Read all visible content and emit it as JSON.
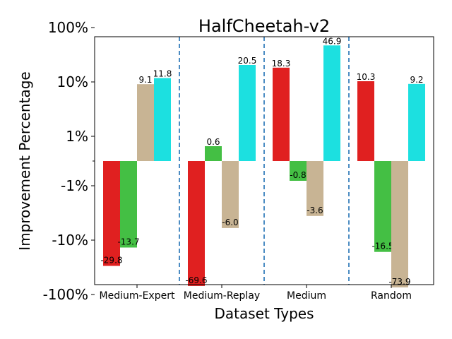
{
  "chart_data": {
    "type": "bar",
    "title": "HalfCheetah-v2",
    "xlabel": "Dataset Types",
    "ylabel": "Improvement Percentage",
    "yscale": "symlog",
    "ylim": [
      -100,
      100
    ],
    "categories": [
      "Medium-Expert",
      "Medium-Replay",
      "Medium",
      "Random"
    ],
    "yticks": [
      {
        "value": 100,
        "label": "100%"
      },
      {
        "value": 10,
        "label": "10%"
      },
      {
        "value": 1,
        "label": "1%"
      },
      {
        "value": -1,
        "label": "-1%"
      },
      {
        "value": -10,
        "label": "-10%"
      },
      {
        "value": -100,
        "label": "-100%"
      }
    ],
    "series": [
      {
        "name": "red",
        "color": "#e02020",
        "values": [
          -29.8,
          -69.6,
          18.3,
          10.3
        ],
        "labels": [
          "-29.8",
          "-69.6",
          "18.3",
          "10.3"
        ]
      },
      {
        "name": "green",
        "color": "#44bf44",
        "values": [
          -13.7,
          0.6,
          -0.8,
          -16.5
        ],
        "labels": [
          "-13.7",
          "0.6",
          "-0.8",
          "-16.5"
        ]
      },
      {
        "name": "tan",
        "color": "#c8b494",
        "values": [
          9.1,
          -6.0,
          -3.6,
          -73.9
        ],
        "labels": [
          "9.1",
          "-6.0",
          "-3.6",
          "-73.9"
        ]
      },
      {
        "name": "cyan",
        "color": "#1ce0e0",
        "values": [
          11.8,
          20.5,
          46.9,
          9.2
        ],
        "labels": [
          "11.8",
          "20.5",
          "46.9",
          "9.2"
        ]
      }
    ],
    "separators": "dashed vertical lines between categories",
    "grid": false
  }
}
